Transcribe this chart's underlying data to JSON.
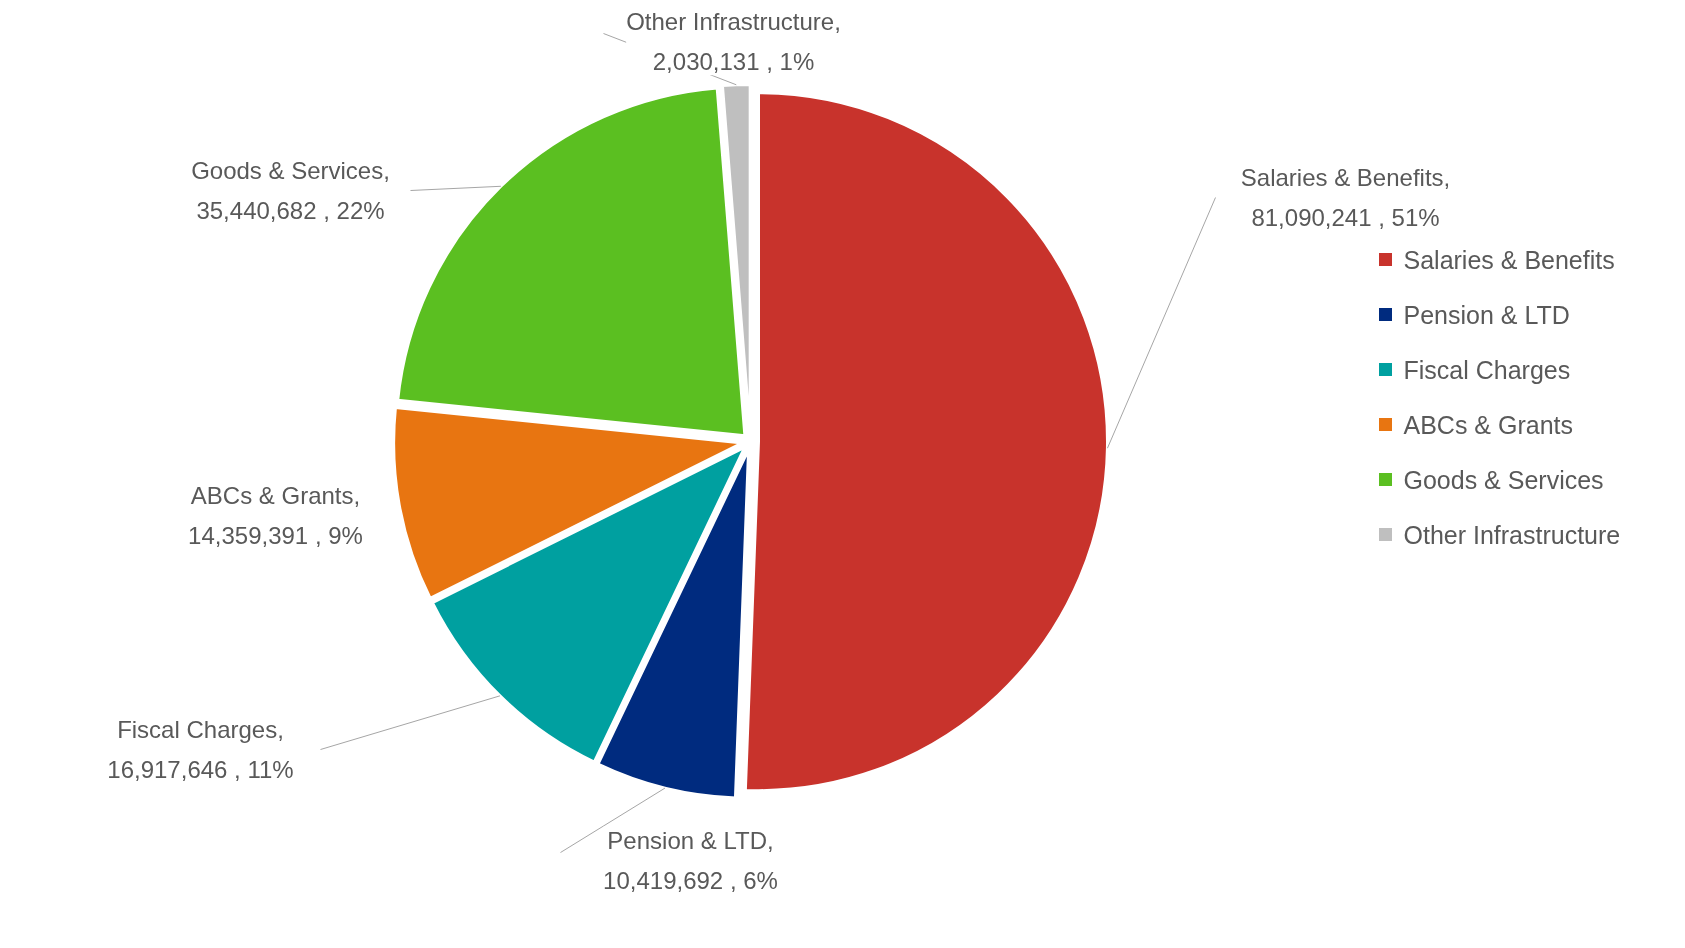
{
  "chart_data": {
    "type": "pie",
    "categories": [
      "Salaries & Benefits",
      "Pension & LTD",
      "Fiscal Charges",
      "ABCs & Grants",
      "Goods & Services",
      "Other Infrastructure"
    ],
    "values": [
      81090241,
      10419692,
      16917646,
      14359391,
      35440682,
      2030131
    ],
    "colors": [
      "#c8332c",
      "#002b7f",
      "#00a0a0",
      "#e87511",
      "#5bbf21",
      "#bfbfbf"
    ],
    "value_labels": [
      "Salaries & Benefits, 81,090,241 , 51%",
      "Pension & LTD, 10,419,692 , 6%",
      "Fiscal Charges, 16,917,646 , 11%",
      "ABCs & Grants, 14,359,391 , 9%",
      "Goods & Services, 35,440,682 , 22%",
      "Other Infrastructure, 2,030,131 , 1%"
    ],
    "legend": "right"
  }
}
